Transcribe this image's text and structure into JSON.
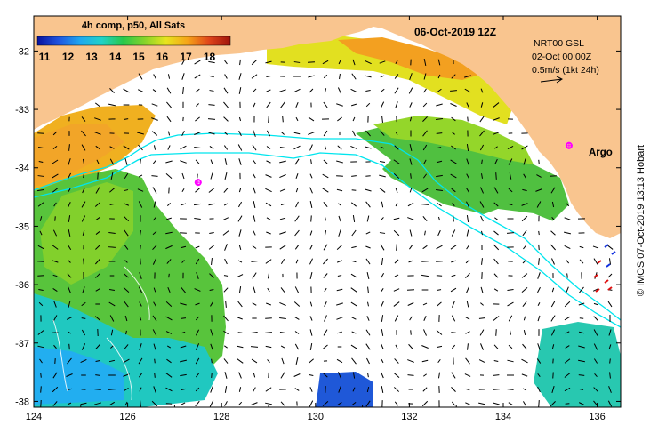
{
  "title": "06-Oct-2019 12Z",
  "legend": {
    "label": "4h comp, p50, All Sats",
    "ticks": [
      "11",
      "12",
      "13",
      "14",
      "15",
      "16",
      "17",
      "18"
    ]
  },
  "currents": {
    "line1": "NRT00 GSL",
    "line2": "02-Oct 00:00Z",
    "scale_label": "0.5m/s (1kt 24h)"
  },
  "argo": {
    "label": "Argo",
    "color": "#ff00ff",
    "floats": [
      {
        "lon": 127.5,
        "lat": -34.25
      },
      {
        "lon": 135.4,
        "lat": -33.62
      }
    ]
  },
  "credit": "© IMOS 07-Oct-2019 13:13 Hobart",
  "axes": {
    "lon_ticks": [
      "124",
      "126",
      "128",
      "130",
      "132",
      "134",
      "136"
    ],
    "lat_ticks": [
      "-32",
      "-33",
      "-34",
      "-35",
      "-36",
      "-37",
      "-38"
    ],
    "lon_range": [
      124,
      136.5
    ],
    "lat_range": [
      -38.1,
      -31.4
    ]
  },
  "colors": {
    "land": "#f9c58f",
    "contour": "#00e5ee",
    "colorbar": [
      "#08129e",
      "#1f55e0",
      "#1fa8f0",
      "#20d2c8",
      "#28c84a",
      "#86d42a",
      "#e7e41e",
      "#f6a418",
      "#e0461a",
      "#a0140c"
    ]
  }
}
